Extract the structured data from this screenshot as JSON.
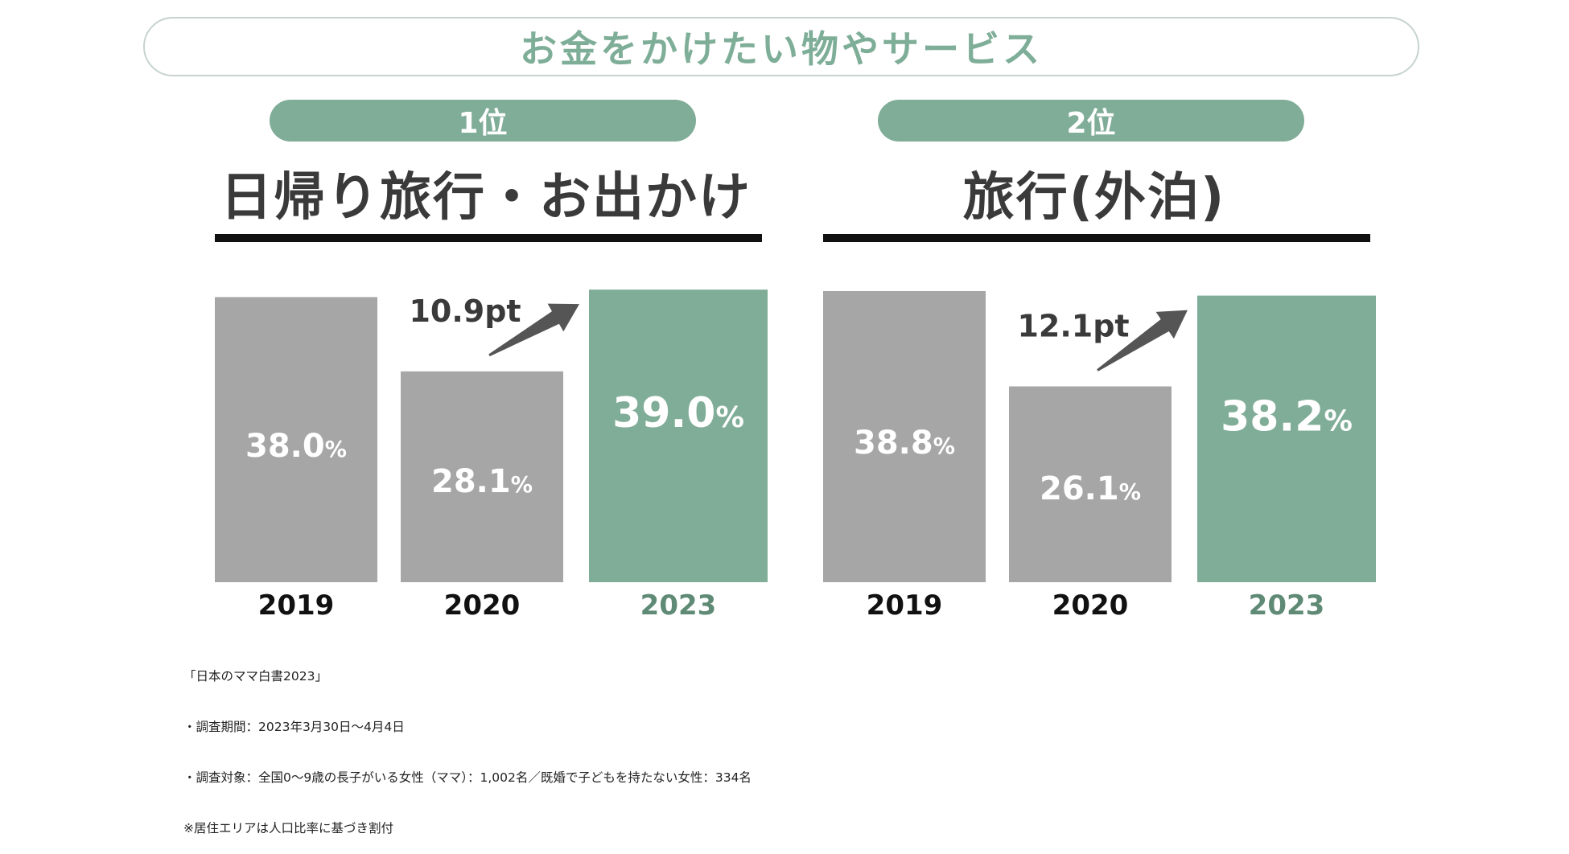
{
  "header": {
    "title": "お金をかけたい物やサービス"
  },
  "colors": {
    "accent": "#80ad98",
    "gray": "#a6a6a6",
    "text_dark": "#3a3a3a",
    "year_accent": "#5f8a75"
  },
  "chart_data": [
    {
      "type": "bar",
      "rank_label": "1位",
      "title": "日帰り旅行・お出かけ",
      "categories": [
        "2019",
        "2020",
        "2023"
      ],
      "values": [
        38.0,
        28.1,
        39.0
      ],
      "value_labels": [
        "38.0",
        "28.1",
        "39.0"
      ],
      "unit": "%",
      "delta_label": "10.9pt",
      "highlight_index": 2
    },
    {
      "type": "bar",
      "rank_label": "2位",
      "title": "旅行(外泊)",
      "categories": [
        "2019",
        "2020",
        "2023"
      ],
      "values": [
        38.8,
        26.1,
        38.2
      ],
      "value_labels": [
        "38.8",
        "26.1",
        "38.2"
      ],
      "unit": "%",
      "delta_label": "12.1pt",
      "highlight_index": 2
    }
  ],
  "footnote": {
    "lines": [
      "「日本のママ白書2023」",
      "・調査期間：2023年3月30日〜4月4日",
      "・調査対象：全国0〜9歳の長子がいる女性（ママ）：1,002名／既婚で子どもを持たない女性：334名",
      "※居住エリアは人口比率に基づき割付"
    ]
  }
}
